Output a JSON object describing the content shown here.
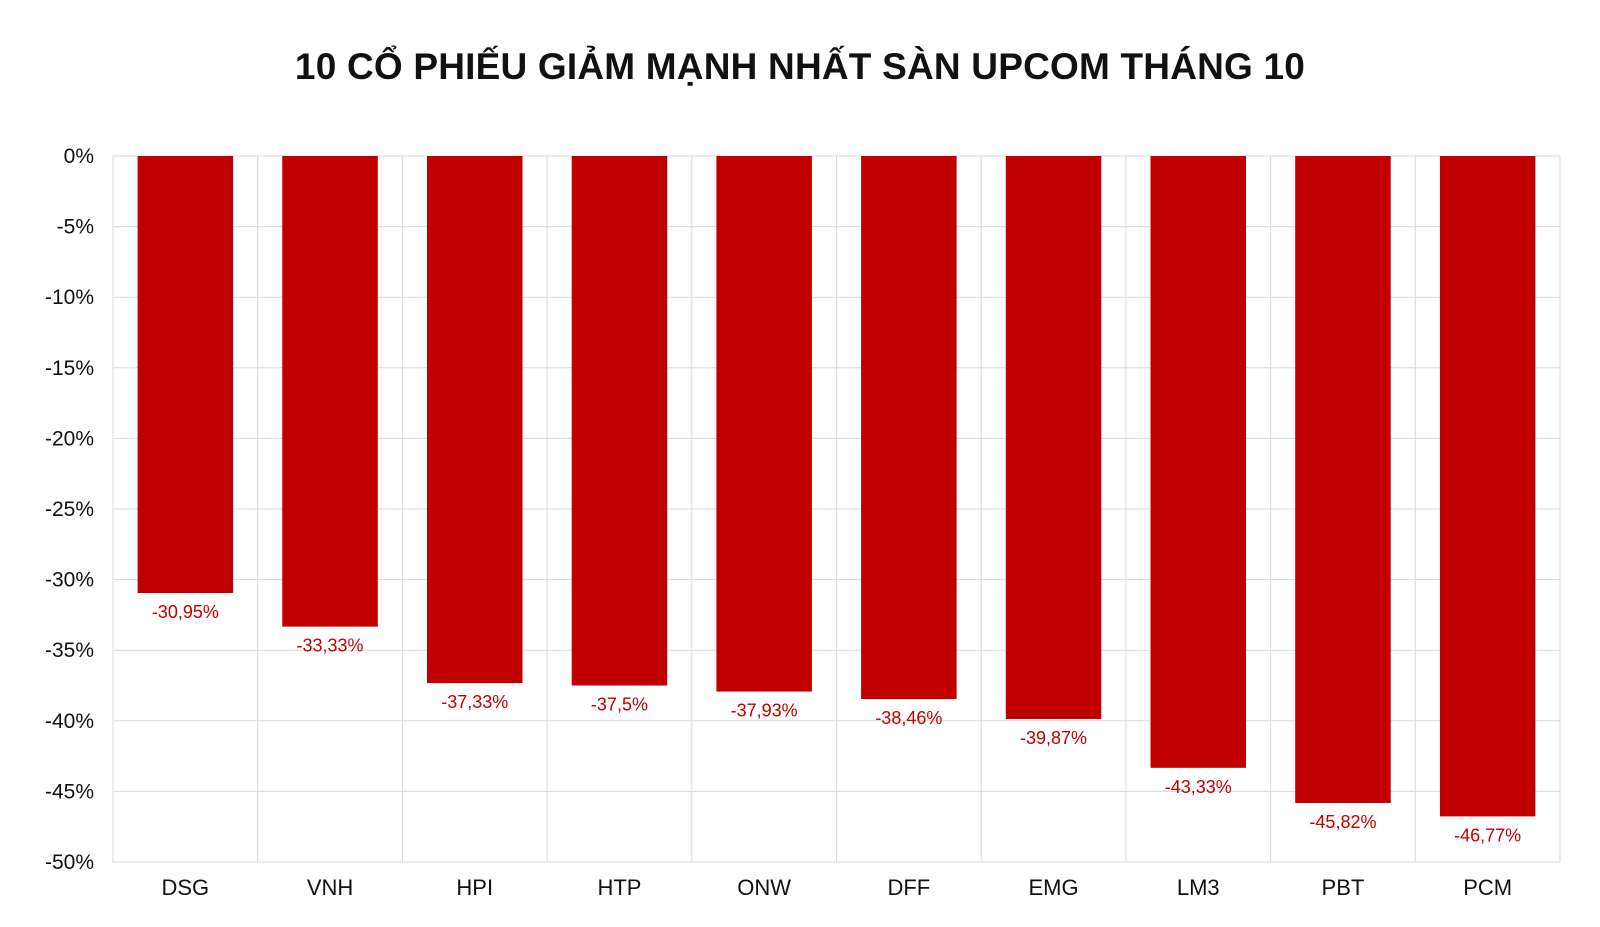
{
  "chart_data": {
    "type": "bar",
    "title": "10 CỔ PHIẾU GIẢM MẠNH NHẤT SÀN UPCOM THÁNG 10",
    "categories": [
      "DSG",
      "VNH",
      "HPI",
      "HTP",
      "ONW",
      "DFF",
      "EMG",
      "LM3",
      "PBT",
      "PCM"
    ],
    "values": [
      -30.95,
      -33.33,
      -37.33,
      -37.5,
      -37.93,
      -38.46,
      -39.87,
      -43.33,
      -45.82,
      -46.77
    ],
    "data_labels": [
      "-30,95%",
      "-33,33%",
      "-37,33%",
      "-37,5%",
      "-37,93%",
      "-38,46%",
      "-39,87%",
      "-43,33%",
      "-45,82%",
      "-46,77%"
    ],
    "ylim": [
      -50,
      0
    ],
    "yticks": [
      0,
      -5,
      -10,
      -15,
      -20,
      -25,
      -30,
      -35,
      -40,
      -45,
      -50
    ],
    "ytick_labels": [
      "0%",
      "-5%",
      "-10%",
      "-15%",
      "-20%",
      "-25%",
      "-30%",
      "-35%",
      "-40%",
      "-45%",
      "-50%"
    ],
    "xlabel": "",
    "ylabel": "",
    "grid": true,
    "bar_color": "#c00000",
    "label_color": "#c00000",
    "grid_color": "#d9d9d9"
  }
}
